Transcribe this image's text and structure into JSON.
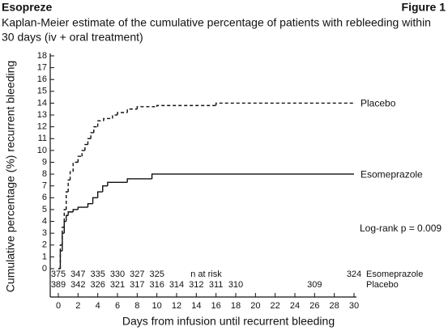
{
  "chart_data": {
    "type": "step",
    "heading": "Esopreze",
    "figure_label": "Figure 1",
    "subtitle": [
      "Kaplan-Meier estimate of the cumulative percentage of patients with rebleeding within",
      "30 days (iv + oral treatment)"
    ],
    "y_label": "Cumulative percentage (%) recurrent bleeding",
    "x_label": "Days from infusion until recurrent bleeding",
    "xlim": [
      0,
      30
    ],
    "ylim": [
      0,
      18
    ],
    "xticks": [
      0,
      2,
      4,
      6,
      8,
      10,
      12,
      14,
      16,
      18,
      20,
      22,
      24,
      26,
      28,
      30
    ],
    "yticks": [
      0,
      1,
      2,
      3,
      4,
      5,
      6,
      7,
      8,
      9,
      10,
      11,
      12,
      13,
      14,
      15,
      16,
      17,
      18
    ],
    "series": [
      {
        "name": "Placebo",
        "color": "#111111",
        "dashed": true,
        "x": [
          0,
          0.2,
          0.4,
          0.6,
          0.8,
          1.0,
          1.2,
          1.5,
          2.0,
          2.4,
          2.7,
          3.0,
          3.3,
          3.6,
          4.0,
          4.6,
          5.5,
          6.0,
          7.0,
          8.0,
          10.0,
          16.0,
          30
        ],
        "values": [
          0,
          2,
          3.5,
          5,
          6.5,
          7.5,
          8.2,
          9,
          9.5,
          10,
          10.5,
          11,
          11.5,
          12,
          12.5,
          12.7,
          13,
          13.2,
          13.5,
          13.7,
          13.8,
          14,
          14
        ]
      },
      {
        "name": "Esomeprazole",
        "color": "#111111",
        "dashed": false,
        "x": [
          0,
          0.2,
          0.4,
          0.6,
          0.8,
          1.0,
          1.5,
          2.0,
          3.0,
          3.5,
          4.0,
          4.5,
          5.0,
          7.0,
          9.5,
          30
        ],
        "values": [
          0,
          1.5,
          3,
          4,
          4.5,
          4.8,
          5,
          5.2,
          5.5,
          6,
          6.5,
          7,
          7.3,
          7.6,
          8,
          8
        ]
      }
    ],
    "annotation": "Log-rank p = 0.009",
    "at_risk": {
      "title": "n at risk",
      "rows": [
        {
          "name": "Esomeprazole",
          "x": [
            0,
            2,
            4,
            6,
            8,
            10,
            30
          ],
          "values": [
            375,
            347,
            335,
            330,
            327,
            325,
            324
          ]
        },
        {
          "name": "Placebo",
          "x": [
            0,
            2,
            4,
            6,
            8,
            10,
            12,
            14,
            16,
            18,
            26
          ],
          "values": [
            389,
            342,
            326,
            321,
            317,
            316,
            314,
            312,
            311,
            310,
            309
          ]
        }
      ]
    }
  }
}
